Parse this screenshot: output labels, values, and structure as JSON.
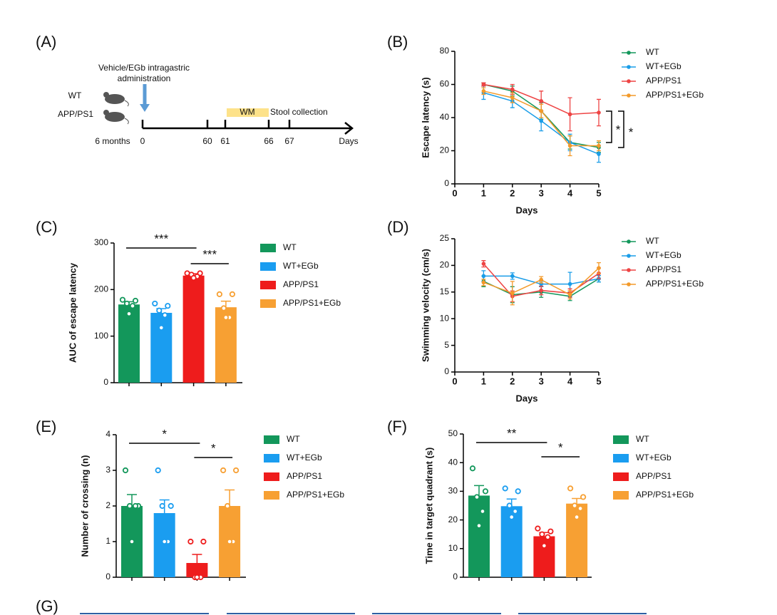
{
  "timeline": {
    "label": "(A)",
    "treatment": [
      "Vehicle/EGb intragastric",
      "administration"
    ],
    "groups": [
      "WT",
      "APP/PS1"
    ],
    "start": "6 months",
    "ticks": [
      "0",
      "60",
      "61",
      "66",
      "67"
    ],
    "axis": "Days",
    "wm": "WM",
    "stool": "Stool collection"
  },
  "chart_data": [
    {
      "type": "line",
      "panel": "(B)",
      "ylabel": "Escape latency (s)",
      "xlabel": "Days",
      "x": [
        1,
        2,
        3,
        4,
        5
      ],
      "xlim": [
        0,
        5
      ],
      "xticks": [
        0,
        1,
        2,
        3,
        4,
        5
      ],
      "ylim": [
        0,
        80
      ],
      "yticks": [
        0,
        20,
        40,
        60,
        80
      ],
      "series": [
        {
          "name": "WT",
          "color": "#13975b",
          "values": [
            60,
            56,
            44,
            25,
            22
          ],
          "errors": [
            1,
            3,
            5,
            4,
            3
          ]
        },
        {
          "name": "WT+EGb",
          "color": "#1a9de8",
          "values": [
            55,
            50,
            38,
            25,
            18
          ],
          "errors": [
            4,
            4,
            6,
            5,
            5
          ]
        },
        {
          "name": "APP/PS1",
          "color": "#ee4444",
          "values": [
            60,
            57,
            50,
            42,
            43
          ],
          "errors": [
            1,
            3,
            6,
            10,
            8
          ]
        },
        {
          "name": "APP/PS1+EGb",
          "color": "#f39a2a",
          "values": [
            56,
            52,
            44,
            23,
            23
          ],
          "errors": [
            2,
            3,
            4,
            6,
            3
          ]
        }
      ],
      "annotations": [
        "*",
        "*"
      ]
    },
    {
      "type": "bar",
      "panel": "(C)",
      "ylabel": "AUC of escape latency",
      "categories": [
        null
      ],
      "ylim": [
        0,
        300
      ],
      "yticks": [
        0,
        100,
        200,
        300
      ],
      "series": [
        {
          "name": "WT",
          "color": "#13975b",
          "values": [
            168
          ],
          "errors": [
            6
          ],
          "points": [
            178,
            176,
            170,
            165,
            148
          ]
        },
        {
          "name": "WT+EGb",
          "color": "#1a9df0",
          "values": [
            150
          ],
          "errors": [
            9
          ],
          "points": [
            170,
            165,
            155,
            145,
            118
          ]
        },
        {
          "name": "APP/PS1",
          "color": "#ee1c1c",
          "values": [
            230
          ],
          "errors": [
            4
          ],
          "points": [
            235,
            235,
            232,
            228,
            225
          ]
        },
        {
          "name": "APP/PS1+EGb",
          "color": "#f7a033",
          "values": [
            162
          ],
          "errors": [
            13
          ],
          "points": [
            190,
            190,
            160,
            140,
            140
          ]
        }
      ],
      "annotations": [
        "***",
        "***"
      ]
    },
    {
      "type": "line",
      "panel": "(D)",
      "ylabel": "Swimming velocity (cm/s)",
      "xlabel": "Days",
      "x": [
        1,
        2,
        3,
        4,
        5
      ],
      "xlim": [
        0,
        5
      ],
      "xticks": [
        0,
        1,
        2,
        3,
        4,
        5
      ],
      "ylim": [
        0,
        25
      ],
      "yticks": [
        0,
        5,
        10,
        15,
        20,
        25
      ],
      "series": [
        {
          "name": "WT",
          "color": "#13975b",
          "values": [
            17,
            14.5,
            15,
            14.2,
            17.5
          ],
          "errors": [
            1,
            1.5,
            1,
            0.8,
            0.6
          ]
        },
        {
          "name": "WT+EGb",
          "color": "#1a9de8",
          "values": [
            18,
            18,
            16.5,
            16.5,
            17.5
          ],
          "errors": [
            1,
            0.6,
            0.5,
            2.2,
            0.6
          ]
        },
        {
          "name": "APP/PS1",
          "color": "#ee4444",
          "values": [
            20.3,
            14.2,
            15.3,
            14.8,
            18.5
          ],
          "errors": [
            0.6,
            1,
            0.8,
            0.8,
            1
          ]
        },
        {
          "name": "APP/PS1+EGb",
          "color": "#f39a2a",
          "values": [
            16.8,
            14.8,
            17.3,
            14.5,
            19.5
          ],
          "errors": [
            0.6,
            2.2,
            0.6,
            0.8,
            1
          ]
        }
      ]
    },
    {
      "type": "bar",
      "panel": "(E)",
      "ylabel": "Number of crossing (n)",
      "categories": [
        null
      ],
      "ylim": [
        0,
        4
      ],
      "yticks": [
        0,
        1,
        2,
        3,
        4
      ],
      "series": [
        {
          "name": "WT",
          "color": "#13975b",
          "values": [
            2
          ],
          "errors": [
            0.32
          ],
          "points": [
            3,
            2,
            2,
            2,
            1
          ]
        },
        {
          "name": "WT+EGb",
          "color": "#1a9df0",
          "values": [
            1.8
          ],
          "errors": [
            0.37
          ],
          "points": [
            3,
            2,
            2,
            1,
            1
          ]
        },
        {
          "name": "APP/PS1",
          "color": "#ee1c1c",
          "values": [
            0.4
          ],
          "errors": [
            0.24
          ],
          "points": [
            1,
            1,
            0,
            0,
            0
          ]
        },
        {
          "name": "APP/PS1+EGb",
          "color": "#f7a033",
          "values": [
            2
          ],
          "errors": [
            0.45
          ],
          "points": [
            3,
            3,
            2,
            1,
            1
          ]
        }
      ],
      "annotations": [
        "*",
        "*"
      ]
    },
    {
      "type": "bar",
      "panel": "(F)",
      "ylabel": "Time in target quadrant (s)",
      "categories": [
        null
      ],
      "ylim": [
        0,
        50
      ],
      "yticks": [
        0,
        10,
        20,
        30,
        40,
        50
      ],
      "series": [
        {
          "name": "WT",
          "color": "#13975b",
          "values": [
            28.5
          ],
          "errors": [
            3.5
          ],
          "points": [
            38,
            30,
            28,
            23,
            18
          ]
        },
        {
          "name": "WT+EGb",
          "color": "#1a9df0",
          "values": [
            24.8
          ],
          "errors": [
            2.5
          ],
          "points": [
            31,
            30,
            25,
            23,
            21
          ]
        },
        {
          "name": "APP/PS1",
          "color": "#ee1c1c",
          "values": [
            14.3
          ],
          "errors": [
            1.3
          ],
          "points": [
            17,
            16,
            15,
            14,
            11
          ]
        },
        {
          "name": "APP/PS1+EGb",
          "color": "#f7a033",
          "values": [
            25.7
          ],
          "errors": [
            1.8
          ],
          "points": [
            31,
            28,
            25,
            24,
            21
          ]
        }
      ],
      "annotations": [
        "**",
        "*"
      ]
    }
  ],
  "panel_g": {
    "label": "(G)"
  }
}
